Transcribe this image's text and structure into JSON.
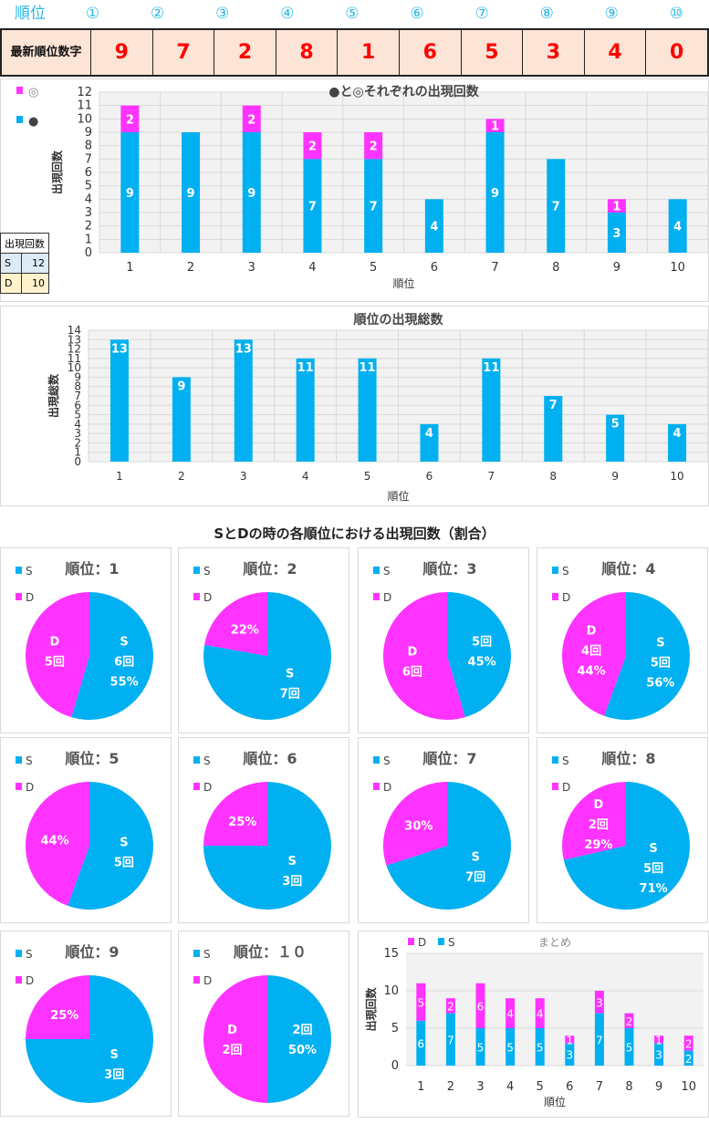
{
  "header": {
    "label": "順位",
    "positions": [
      "①",
      "②",
      "③",
      "④",
      "⑤",
      "⑥",
      "⑦",
      "⑧",
      "⑨",
      "⑩"
    ]
  },
  "latest": {
    "label": "最新順位数字",
    "digits": [
      "9",
      "7",
      "2",
      "8",
      "1",
      "6",
      "5",
      "3",
      "4",
      "0"
    ]
  },
  "count_table": {
    "header": "出現回数",
    "rows": [
      {
        "k": "S",
        "v": "12"
      },
      {
        "k": "D",
        "v": "10"
      }
    ]
  },
  "colors": {
    "cyan": "#00b0f0",
    "magenta": "#ff33ff"
  },
  "section_title": "SとDの時の各順位における出現回数（割合）",
  "chart_data": [
    {
      "type": "bar",
      "stacked": true,
      "title": "●と◎それぞれの出現回数",
      "xlabel": "順位",
      "ylabel": "出現回数",
      "ylim": [
        0,
        12
      ],
      "categories": [
        "1",
        "2",
        "3",
        "4",
        "5",
        "6",
        "7",
        "8",
        "9",
        "10"
      ],
      "series": [
        {
          "name": "●",
          "values": [
            9,
            9,
            9,
            7,
            7,
            4,
            9,
            7,
            3,
            4
          ]
        },
        {
          "name": "◎",
          "values": [
            2,
            0,
            2,
            2,
            2,
            0,
            1,
            0,
            1,
            0
          ]
        }
      ],
      "legend": [
        "◎",
        "●"
      ]
    },
    {
      "type": "bar",
      "title": "順位の出現総数",
      "xlabel": "順位",
      "ylabel": "出現総数",
      "ylim": [
        0,
        14
      ],
      "categories": [
        "1",
        "2",
        "3",
        "4",
        "5",
        "6",
        "7",
        "8",
        "9",
        "10"
      ],
      "values": [
        13,
        9,
        13,
        11,
        11,
        4,
        11,
        7,
        5,
        4
      ]
    },
    {
      "type": "pie",
      "pies": [
        {
          "title": "順位：1",
          "S": 6,
          "D": 5,
          "s_labels": [
            "S",
            "6回",
            "55%"
          ],
          "d_labels": [
            "D",
            "5回"
          ]
        },
        {
          "title": "順位：2",
          "S": 7,
          "D": 2,
          "s_labels": [
            "S",
            "7回"
          ],
          "d_labels": [
            "22%"
          ]
        },
        {
          "title": "順位：3",
          "S": 5,
          "D": 6,
          "s_labels": [
            "5回",
            "45%"
          ],
          "d_labels": [
            "D",
            "6回"
          ]
        },
        {
          "title": "順位：4",
          "S": 5,
          "D": 4,
          "s_labels": [
            "S",
            "5回",
            "56%"
          ],
          "d_labels": [
            "D",
            "4回",
            "44%"
          ]
        },
        {
          "title": "順位：5",
          "S": 5,
          "D": 4,
          "s_labels": [
            "S",
            "5回"
          ],
          "d_labels": [
            "44%"
          ]
        },
        {
          "title": "順位：6",
          "S": 3,
          "D": 1,
          "s_labels": [
            "S",
            "3回"
          ],
          "d_labels": [
            "25%"
          ]
        },
        {
          "title": "順位：7",
          "S": 7,
          "D": 3,
          "s_labels": [
            "S",
            "7回"
          ],
          "d_labels": [
            "30%"
          ]
        },
        {
          "title": "順位：8",
          "S": 5,
          "D": 2,
          "s_labels": [
            "S",
            "5回",
            "71%"
          ],
          "d_labels": [
            "D",
            "2回",
            "29%"
          ]
        },
        {
          "title": "順位：9",
          "S": 3,
          "D": 1,
          "s_labels": [
            "S",
            "3回"
          ],
          "d_labels": [
            "25%"
          ]
        },
        {
          "title": "順位：１０",
          "S": 2,
          "D": 2,
          "s_labels": [
            "2回",
            "50%"
          ],
          "d_labels": [
            "D",
            "2回"
          ]
        }
      ],
      "legend": [
        "S",
        "D"
      ]
    },
    {
      "type": "bar",
      "stacked": true,
      "title": "まとめ",
      "xlabel": "順位",
      "ylabel": "出現回数",
      "ylim": [
        0,
        15
      ],
      "categories": [
        "1",
        "2",
        "3",
        "4",
        "5",
        "6",
        "7",
        "8",
        "9",
        "10"
      ],
      "series": [
        {
          "name": "S",
          "values": [
            6,
            7,
            5,
            5,
            5,
            3,
            7,
            5,
            3,
            2
          ]
        },
        {
          "name": "D",
          "values": [
            5,
            2,
            6,
            4,
            4,
            1,
            3,
            2,
            1,
            2
          ]
        }
      ],
      "legend": [
        "D",
        "S"
      ]
    }
  ]
}
